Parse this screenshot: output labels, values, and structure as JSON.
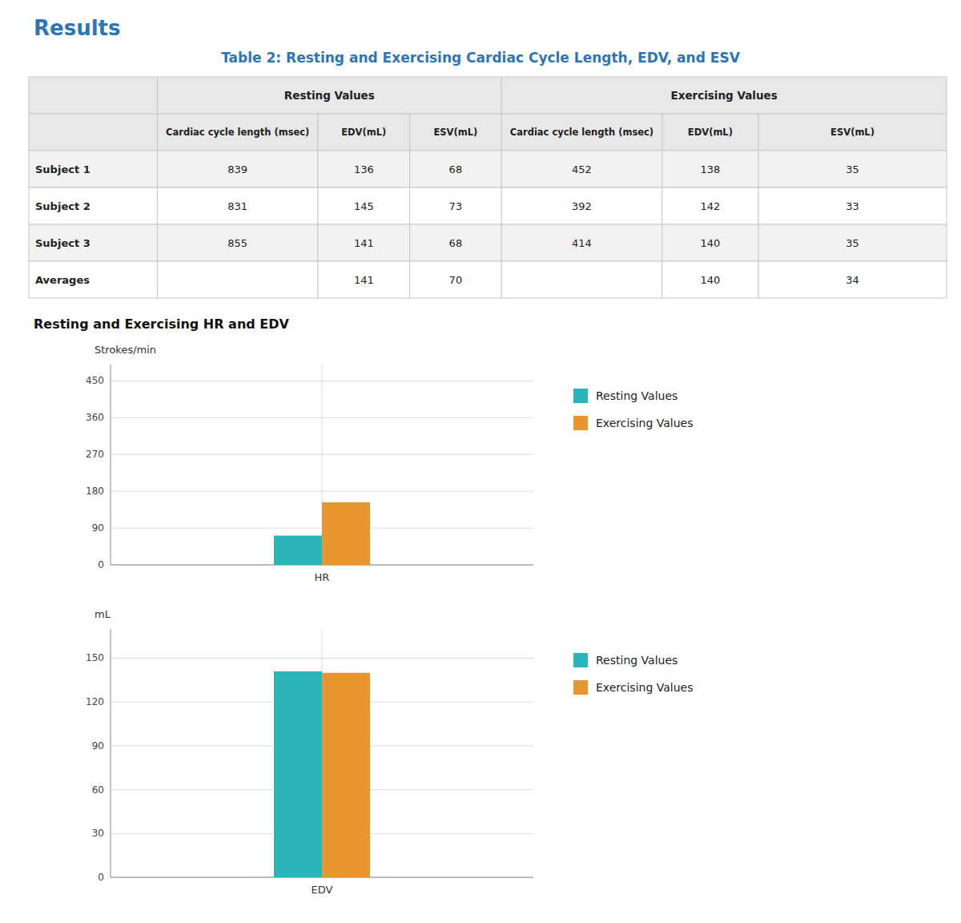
{
  "heading": "Results",
  "section_title": "Resting and Exercising HR and EDV",
  "chart_data": [
    {
      "type": "table",
      "title": "Table 2: Resting and Exercising Cardiac Cycle Length, EDV, and ESV",
      "columns": [
        {
          "group": "Resting Values",
          "name": "Cardiac cycle length (msec)"
        },
        {
          "group": "Resting Values",
          "name": "EDV(mL)"
        },
        {
          "group": "Resting Values",
          "name": "ESV(mL)"
        },
        {
          "group": "Exercising Values",
          "name": "Cardiac cycle length (msec)"
        },
        {
          "group": "Exercising Values",
          "name": "EDV(mL)"
        },
        {
          "group": "Exercising Values",
          "name": "ESV(mL)"
        }
      ],
      "rows": [
        {
          "label": "Subject 1",
          "cells": [
            839,
            136,
            68,
            452,
            138,
            35
          ]
        },
        {
          "label": "Subject 2",
          "cells": [
            831,
            145,
            73,
            392,
            142,
            33
          ]
        },
        {
          "label": "Subject 3",
          "cells": [
            855,
            141,
            68,
            414,
            140,
            35
          ]
        },
        {
          "label": "Averages",
          "cells": [
            null,
            141,
            70,
            null,
            140,
            34
          ]
        }
      ]
    },
    {
      "type": "bar",
      "ylabel": "Strokes/min",
      "categories": [
        "HR"
      ],
      "series": [
        {
          "name": "Resting Values",
          "color": "#2BB5B8",
          "values": [
            71.5
          ]
        },
        {
          "name": "Exercising Values",
          "color": "#E8962E",
          "values": [
            153.1
          ]
        }
      ],
      "ylim": [
        0,
        490
      ],
      "yticks": [
        0,
        90,
        180,
        270,
        360,
        450
      ],
      "grid": true,
      "legend": "right"
    },
    {
      "type": "bar",
      "ylabel": "mL",
      "categories": [
        "EDV"
      ],
      "series": [
        {
          "name": "Resting Values",
          "color": "#2BB5B8",
          "values": [
            141
          ]
        },
        {
          "name": "Exercising Values",
          "color": "#E8962E",
          "values": [
            140
          ]
        }
      ],
      "ylim": [
        0,
        170
      ],
      "yticks": [
        0,
        30,
        60,
        90,
        120,
        150
      ],
      "grid": true,
      "legend": "right"
    }
  ]
}
